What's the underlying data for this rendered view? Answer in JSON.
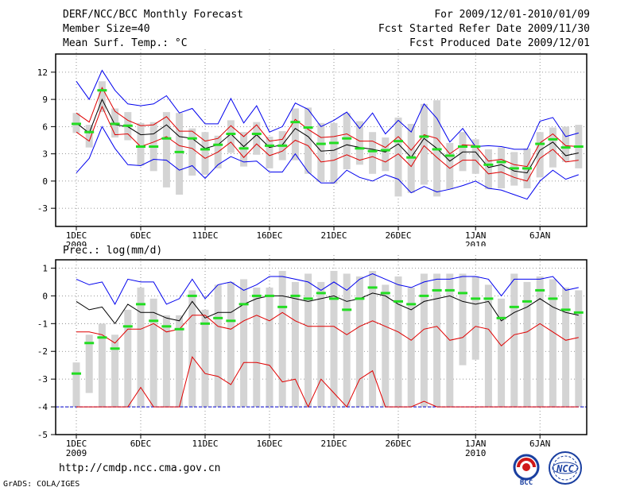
{
  "header": {
    "title": "DERF/NCC/BCC Monthly Forecast",
    "member_size": "Member Size=40",
    "variable": "Mean Surf. Temp.: °C",
    "period": "For 2009/12/01-2010/01/09",
    "fcst_started": "Fcst Started Refer Date 2009/11/30",
    "fcst_produced": "Fcst Produced Date 2009/12/01"
  },
  "footer": {
    "url": "http://cmdp.ncc.cma.gov.cn",
    "grads": "GrADS: COLA/IGES",
    "logo_bcc": "BCC",
    "logo_ncc": "NCC"
  },
  "colors": {
    "box": "#d4d4d4",
    "mean": "#000000",
    "spread": "#e00000",
    "extreme": "#0000ee",
    "obs": "#22dd22",
    "baseline": "#0000cc"
  },
  "chart_data": [
    {
      "type": "line",
      "title": "Mean Surf. Temp.: °C",
      "ylim": [
        -5,
        14
      ],
      "yticks": [
        12,
        9,
        6,
        3,
        0,
        -3
      ],
      "xticks": [
        {
          "day": 1,
          "label": "1DEC",
          "sub": "2009"
        },
        {
          "day": 6,
          "label": "6DEC"
        },
        {
          "day": 11,
          "label": "11DEC"
        },
        {
          "day": 16,
          "label": "16DEC"
        },
        {
          "day": 21,
          "label": "21DEC"
        },
        {
          "day": 26,
          "label": "26DEC"
        },
        {
          "day": 32,
          "label": "1JAN",
          "sub": "2010"
        },
        {
          "day": 37,
          "label": "6JAN"
        }
      ],
      "x": [
        1,
        2,
        3,
        4,
        5,
        6,
        7,
        8,
        9,
        10,
        11,
        12,
        13,
        14,
        15,
        16,
        17,
        18,
        19,
        20,
        21,
        22,
        23,
        24,
        25,
        26,
        27,
        28,
        29,
        30,
        31,
        32,
        33,
        34,
        35,
        36,
        37,
        38,
        39,
        40
      ],
      "series": [
        {
          "name": "max",
          "role": "extreme",
          "values": [
            11,
            9,
            12.2,
            10,
            8.5,
            8.3,
            8.5,
            9.4,
            7.5,
            8,
            6.3,
            6.3,
            9.1,
            6.4,
            8.3,
            5.4,
            6,
            8.6,
            7.9,
            6,
            6.7,
            7.6,
            5.8,
            7.5,
            5.2,
            6.7,
            5.4,
            8.5,
            6.9,
            4.3,
            5.8,
            3.8,
            3.9,
            3.8,
            3.5,
            3.5,
            6.6,
            7,
            4.9,
            5.3
          ]
        },
        {
          "name": "upper",
          "role": "spread",
          "values": [
            7.5,
            6.5,
            10.3,
            7.7,
            6.7,
            6.1,
            6.2,
            7.1,
            5.5,
            5.5,
            4.4,
            4.7,
            6.1,
            4.9,
            6.2,
            4.4,
            4.6,
            6.8,
            5.7,
            4.8,
            4.9,
            5.2,
            4.4,
            4.4,
            3.7,
            4.9,
            3.4,
            5.1,
            4.7,
            3,
            4,
            3.9,
            2.2,
            2.4,
            1.8,
            1.6,
            4.2,
            5.2,
            3.9,
            3.8
          ]
        },
        {
          "name": "mean",
          "role": "mean",
          "values": [
            6.4,
            5.3,
            9,
            6.2,
            6,
            5.1,
            5.2,
            6.2,
            4.9,
            4.7,
            3.6,
            4,
            5.2,
            3.8,
            5.1,
            3.7,
            4,
            5.8,
            4.9,
            3.3,
            3.4,
            4,
            3.7,
            3.5,
            3.2,
            4.1,
            2.6,
            4.7,
            3.6,
            2.2,
            3.2,
            3.2,
            1.5,
            1.8,
            1.1,
            0.9,
            3.4,
            4.3,
            2.8,
            3.1
          ]
        },
        {
          "name": "lower",
          "role": "spread",
          "values": [
            5.4,
            4.4,
            8.2,
            5.1,
            5.2,
            3.8,
            4.3,
            4.9,
            3.9,
            3.6,
            2.5,
            3.2,
            4.3,
            2.6,
            4.1,
            2.8,
            3.3,
            4.5,
            3.9,
            2.1,
            2.3,
            2.9,
            2.3,
            2.7,
            2.1,
            3,
            1.6,
            3.9,
            2.6,
            1.4,
            2.3,
            2.3,
            0.8,
            1,
            0.4,
            0,
            2.5,
            3.5,
            2.1,
            2.3
          ]
        },
        {
          "name": "min",
          "role": "extreme",
          "values": [
            0.9,
            2.5,
            6,
            3.6,
            1.8,
            1.7,
            2.4,
            2.3,
            1.2,
            1.7,
            0.3,
            1.8,
            2.7,
            2.1,
            2.2,
            1,
            1,
            3,
            1,
            -0.2,
            -0.2,
            1.2,
            0.4,
            0,
            0.7,
            0.2,
            -1.3,
            -0.6,
            -1.2,
            -0.9,
            -0.5,
            0,
            -0.8,
            -1,
            -1.5,
            -2,
            0,
            1.2,
            0.2,
            0.7
          ]
        },
        {
          "name": "obs",
          "role": "obs",
          "values": [
            6.3,
            5.4,
            10,
            6.3,
            6.1,
            3.8,
            3.8,
            4.7,
            3.2,
            4.7,
            3.5,
            4,
            5.2,
            3.6,
            5.2,
            3.9,
            3.9,
            6.5,
            5.9,
            4.1,
            4.2,
            4.7,
            3.6,
            3.3,
            3.4,
            4.4,
            2.6,
            4.9,
            3.5,
            2.8,
            3.8,
            3.8,
            1.8,
            2.1,
            1.4,
            1.4,
            4.1,
            4.6,
            3.7,
            3.8
          ]
        },
        {
          "name": "box_high",
          "role": "box",
          "values": [
            7.5,
            6.2,
            11,
            8,
            7.6,
            6.4,
            6.5,
            7.6,
            7.5,
            5.8,
            5.4,
            5,
            6.7,
            5.4,
            6.5,
            4.9,
            5.5,
            8,
            8.1,
            6.4,
            6.4,
            7.5,
            6.6,
            5.4,
            4.8,
            7,
            6.3,
            8.5,
            8.9,
            4.2,
            5.4,
            4.6,
            3.5,
            3.7,
            3.2,
            3.6,
            5.4,
            5.9,
            6,
            6.2
          ]
        },
        {
          "name": "box_low",
          "role": "box",
          "values": [
            5.3,
            3.7,
            7.6,
            4.8,
            4.5,
            1.7,
            1.1,
            -0.7,
            -1.5,
            0.6,
            0.7,
            1.4,
            3.1,
            1.6,
            2.9,
            1.4,
            2.3,
            2.3,
            0.8,
            -0.1,
            -0.3,
            1.3,
            1.8,
            0.8,
            1.1,
            -1.7,
            -1.3,
            -0.4,
            -1.7,
            -0.9,
            1.1,
            0.8,
            -0.9,
            -0.8,
            -0.5,
            -0.8,
            0.4,
            1.5,
            2.1,
            1.4
          ]
        }
      ]
    },
    {
      "type": "line",
      "title": "Prec.: log(mm/d)",
      "ylim": [
        -5,
        1.3
      ],
      "yticks": [
        1,
        0,
        -1,
        -2,
        -3,
        -4,
        -5
      ],
      "xticks": [
        {
          "day": 1,
          "label": "1DEC",
          "sub": "2009"
        },
        {
          "day": 6,
          "label": "6DEC"
        },
        {
          "day": 11,
          "label": "11DEC"
        },
        {
          "day": 16,
          "label": "16DEC"
        },
        {
          "day": 21,
          "label": "21DEC"
        },
        {
          "day": 26,
          "label": "26DEC"
        },
        {
          "day": 32,
          "label": "1JAN",
          "sub": "2010"
        },
        {
          "day": 37,
          "label": "6JAN"
        }
      ],
      "x": [
        1,
        2,
        3,
        4,
        5,
        6,
        7,
        8,
        9,
        10,
        11,
        12,
        13,
        14,
        15,
        16,
        17,
        18,
        19,
        20,
        21,
        22,
        23,
        24,
        25,
        26,
        27,
        28,
        29,
        30,
        31,
        32,
        33,
        34,
        35,
        36,
        37,
        38,
        39,
        40
      ],
      "series": [
        {
          "name": "max",
          "role": "extreme",
          "values": [
            0.6,
            0.4,
            0.5,
            -0.3,
            0.6,
            0.5,
            0.5,
            -0.3,
            -0.1,
            0.6,
            -0.1,
            0.4,
            0.5,
            0.2,
            0.4,
            0.7,
            0.7,
            0.6,
            0.5,
            0.2,
            0.5,
            0.2,
            0.6,
            0.8,
            0.6,
            0.4,
            0.3,
            0.5,
            0.6,
            0.6,
            0.7,
            0.7,
            0.6,
            0,
            0.6,
            0.6,
            0.6,
            0.7,
            0.2,
            0.3
          ]
        },
        {
          "name": "mean",
          "role": "mean",
          "values": [
            -0.2,
            -0.5,
            -0.4,
            -1,
            -0.3,
            -0.6,
            -0.6,
            -0.8,
            -0.9,
            -0.2,
            -0.8,
            -0.6,
            -0.6,
            -0.3,
            -0.1,
            0,
            0,
            -0.1,
            -0.2,
            -0.1,
            0,
            -0.2,
            -0.1,
            0.1,
            0,
            -0.3,
            -0.5,
            -0.2,
            -0.1,
            0,
            -0.2,
            -0.3,
            -0.2,
            -0.9,
            -0.6,
            -0.4,
            -0.1,
            -0.4,
            -0.6,
            -0.7
          ]
        },
        {
          "name": "upper",
          "role": "spread",
          "values": [
            -1.3,
            -1.3,
            -1.4,
            -1.7,
            -1.2,
            -1.2,
            -1,
            -1.3,
            -1.2,
            -0.7,
            -0.7,
            -1.1,
            -1.2,
            -0.9,
            -0.7,
            -0.9,
            -0.6,
            -0.9,
            -1.1,
            -1.1,
            -1.1,
            -1.4,
            -1.1,
            -0.9,
            -1.1,
            -1.3,
            -1.6,
            -1.2,
            -1.1,
            -1.6,
            -1.5,
            -1.1,
            -1.2,
            -1.8,
            -1.4,
            -1.3,
            -1,
            -1.3,
            -1.6,
            -1.5
          ]
        },
        {
          "name": "lower",
          "role": "spread",
          "values": [
            -4,
            -4,
            -4,
            -4,
            -4,
            -3.3,
            -4,
            -4,
            -4,
            -2.2,
            -2.8,
            -2.9,
            -3.2,
            -2.4,
            -2.4,
            -2.5,
            -3.1,
            -3,
            -4,
            -3,
            -3.5,
            -4,
            -3,
            -2.7,
            -4,
            -4,
            -4,
            -3.8,
            -4,
            -4,
            -4,
            -4,
            -4,
            -4,
            -4,
            -4,
            -4,
            -4,
            -4,
            -4
          ]
        },
        {
          "name": "obs",
          "role": "obs",
          "values": [
            -2.8,
            -1.7,
            -1.5,
            -1.9,
            -1.1,
            -0.3,
            -0.9,
            -1.1,
            -1.2,
            0,
            -1,
            -0.8,
            -0.9,
            -0.3,
            0,
            0,
            -0.4,
            0,
            -0.1,
            0.1,
            -0.1,
            -0.5,
            -0.1,
            0.3,
            0.1,
            -0.2,
            -0.3,
            0,
            0.2,
            0.2,
            0.1,
            -0.1,
            -0.1,
            -0.8,
            -0.4,
            -0.2,
            0.2,
            -0.1,
            -0.5,
            -0.6
          ]
        },
        {
          "name": "box_high",
          "role": "box",
          "values": [
            -2.4,
            -1.4,
            -1,
            -1.4,
            -0.5,
            0.3,
            -0.1,
            -0.7,
            -0.7,
            0.2,
            -0.5,
            0.4,
            0.5,
            0.6,
            0.3,
            0.3,
            0.9,
            0.5,
            0.8,
            0.5,
            0.9,
            0.8,
            0.7,
            0.9,
            0.4,
            0.7,
            0.3,
            0.8,
            0.8,
            0.8,
            0.8,
            0.7,
            0.4,
            -0.1,
            0.8,
            0.5,
            0.7,
            0.6,
            0.3,
            0.2
          ]
        },
        {
          "name": "box_low",
          "role": "box",
          "values": [
            -4,
            -3.5,
            -4,
            -4,
            -4,
            -4,
            -4,
            -4,
            -4,
            -4,
            -4,
            -4,
            -4,
            -4,
            -4,
            -4,
            -4,
            -4,
            -4,
            -4,
            -4,
            -4,
            -4,
            -4,
            -4,
            -4,
            -4,
            -4,
            -4,
            -4,
            -2.5,
            -2.3,
            -4,
            -4,
            -4,
            -4,
            -4,
            -4,
            -4,
            -4
          ]
        }
      ]
    }
  ]
}
